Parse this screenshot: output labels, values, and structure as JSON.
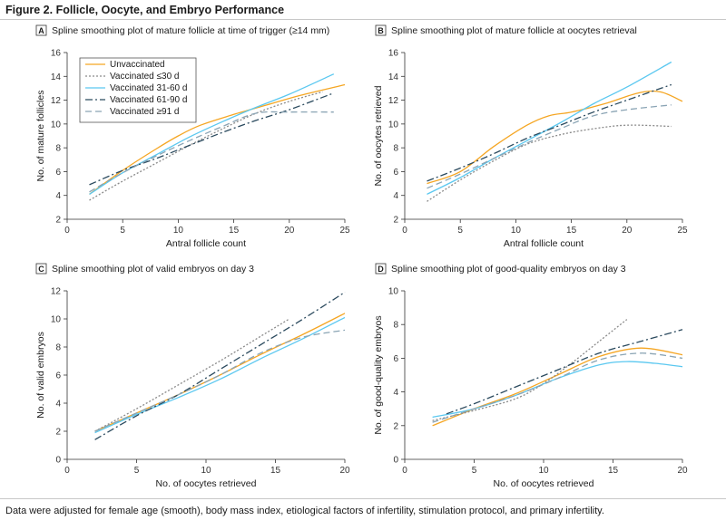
{
  "figure": {
    "title": "Figure 2. Follicle, Oocyte, and Embryo Performance",
    "footnote": "Data were adjusted for female age (smooth), body mass index, etiological factors of infertility, stimulation protocol, and primary infertility."
  },
  "series_styles": [
    {
      "name": "Unvaccinated",
      "color": "#f5a623",
      "dash": "solid"
    },
    {
      "name": "Vaccinated ≤30 d",
      "color": "#8a8a8a",
      "dash": "dotted"
    },
    {
      "name": "Vaccinated 31-60 d",
      "color": "#5bc8f0",
      "dash": "solid"
    },
    {
      "name": "Vaccinated 61-90 d",
      "color": "#2b4a5e",
      "dash": "dashdot"
    },
    {
      "name": "Vaccinated ≥91 d",
      "color": "#8aa4b4",
      "dash": "dashed"
    }
  ],
  "chart_data": [
    {
      "panel": "A",
      "type": "line",
      "title": "Spline smoothing plot of mature follicle at time of trigger (≥14 mm)",
      "xlabel": "Antral follicle count",
      "ylabel": "No. of mature follicles",
      "xlim": [
        0,
        25
      ],
      "ylim": [
        2,
        16
      ],
      "xticks": [
        0,
        5,
        10,
        15,
        20,
        25
      ],
      "yticks": [
        2,
        4,
        6,
        8,
        10,
        12,
        14,
        16
      ],
      "legend": "top-left",
      "series": [
        {
          "name": "Unvaccinated",
          "x": [
            2,
            5,
            8,
            10,
            12,
            15,
            18,
            21,
            25
          ],
          "y": [
            4.1,
            6.1,
            7.9,
            9.0,
            9.9,
            10.8,
            11.6,
            12.4,
            13.3
          ]
        },
        {
          "name": "Vaccinated ≤30 d",
          "x": [
            2,
            5,
            8,
            11,
            14,
            17,
            20,
            23
          ],
          "y": [
            3.6,
            5.2,
            6.7,
            8.2,
            9.6,
            10.9,
            11.9,
            12.7
          ]
        },
        {
          "name": "Vaccinated 31-60 d",
          "x": [
            2,
            5,
            8,
            11,
            14,
            17,
            20,
            24
          ],
          "y": [
            4.1,
            5.9,
            7.4,
            8.9,
            10.2,
            11.4,
            12.5,
            14.2
          ]
        },
        {
          "name": "Vaccinated 61-90 d",
          "x": [
            2,
            5,
            8,
            11,
            14,
            17,
            20,
            24
          ],
          "y": [
            4.9,
            6.1,
            7.1,
            8.2,
            9.3,
            10.3,
            11.2,
            12.6
          ]
        },
        {
          "name": "Vaccinated ≥91 d",
          "x": [
            2,
            5,
            8,
            11,
            14,
            17,
            20,
            24
          ],
          "y": [
            4.3,
            5.9,
            7.3,
            8.6,
            9.8,
            10.9,
            11.0,
            11.0
          ]
        }
      ]
    },
    {
      "panel": "B",
      "type": "line",
      "title": "Spline smoothing plot of mature follicle at oocytes retrieval",
      "xlabel": "Antral follicle count",
      "ylabel": "No. of oocytes retrieved",
      "xlim": [
        0,
        25
      ],
      "ylim": [
        2,
        16
      ],
      "xticks": [
        0,
        5,
        10,
        15,
        20,
        25
      ],
      "yticks": [
        2,
        4,
        6,
        8,
        10,
        12,
        14,
        16
      ],
      "legend": "none",
      "series": [
        {
          "name": "Unvaccinated",
          "x": [
            2,
            5,
            8,
            11,
            13,
            15,
            18,
            21,
            23,
            25
          ],
          "y": [
            5.0,
            6.0,
            8.1,
            9.9,
            10.7,
            11.0,
            11.7,
            12.6,
            12.7,
            11.9
          ]
        },
        {
          "name": "Vaccinated ≤30 d",
          "x": [
            2,
            5,
            8,
            11,
            14,
            17,
            20,
            24
          ],
          "y": [
            3.5,
            5.3,
            6.9,
            8.3,
            9.1,
            9.6,
            9.9,
            9.8
          ]
        },
        {
          "name": "Vaccinated 31-60 d",
          "x": [
            2,
            5,
            8,
            11,
            14,
            17,
            20,
            24
          ],
          "y": [
            4.1,
            5.5,
            7.1,
            8.6,
            10.1,
            11.7,
            13.1,
            15.2
          ]
        },
        {
          "name": "Vaccinated 61-90 d",
          "x": [
            2,
            5,
            8,
            11,
            14,
            17,
            20,
            24
          ],
          "y": [
            5.2,
            6.3,
            7.5,
            8.8,
            9.9,
            11.0,
            12.0,
            13.3
          ]
        },
        {
          "name": "Vaccinated ≥91 d",
          "x": [
            2,
            5,
            8,
            11,
            14,
            17,
            20,
            24
          ],
          "y": [
            4.6,
            5.8,
            7.1,
            8.4,
            9.6,
            10.7,
            11.2,
            11.6
          ]
        }
      ]
    },
    {
      "panel": "C",
      "type": "line",
      "title": "Spline smoothing plot of valid embryos on day 3",
      "xlabel": "No. of oocytes retrieved",
      "ylabel": "No. of valid embryos",
      "xlim": [
        0,
        20
      ],
      "ylim": [
        0,
        12
      ],
      "xticks": [
        0,
        5,
        10,
        15,
        20
      ],
      "yticks": [
        0,
        2,
        4,
        6,
        8,
        10,
        12
      ],
      "legend": "none",
      "series": [
        {
          "name": "Unvaccinated",
          "x": [
            2,
            5,
            8,
            11,
            14,
            17,
            20
          ],
          "y": [
            2.0,
            3.3,
            4.6,
            6.0,
            7.5,
            8.9,
            10.4
          ]
        },
        {
          "name": "Vaccinated ≤30 d",
          "x": [
            2,
            5,
            8,
            11,
            14,
            16
          ],
          "y": [
            2.0,
            3.6,
            5.3,
            7.0,
            8.8,
            10.0
          ]
        },
        {
          "name": "Vaccinated 31-60 d",
          "x": [
            2,
            5,
            8,
            11,
            14,
            17,
            20
          ],
          "y": [
            1.9,
            3.2,
            4.4,
            5.7,
            7.2,
            8.6,
            10.1
          ]
        },
        {
          "name": "Vaccinated 61-90 d",
          "x": [
            2,
            5,
            8,
            11,
            14,
            17,
            20
          ],
          "y": [
            1.4,
            3.1,
            4.6,
            6.4,
            8.2,
            10.0,
            11.9
          ]
        },
        {
          "name": "Vaccinated ≥91 d",
          "x": [
            2,
            5,
            8,
            11,
            14,
            17,
            20
          ],
          "y": [
            2.0,
            3.3,
            4.6,
            6.0,
            7.6,
            8.7,
            9.2
          ]
        }
      ]
    },
    {
      "panel": "D",
      "type": "line",
      "title": "Spline smoothing plot of good-quality embryos on day 3",
      "xlabel": "No. of oocytes retrieved",
      "ylabel": "No. of good-quality embryos",
      "xlim": [
        0,
        20
      ],
      "ylim": [
        0,
        10
      ],
      "xticks": [
        0,
        5,
        10,
        15,
        20
      ],
      "yticks": [
        0,
        2,
        4,
        6,
        8,
        10
      ],
      "legend": "none",
      "series": [
        {
          "name": "Unvaccinated",
          "x": [
            2,
            5,
            8,
            11,
            14,
            17,
            20
          ],
          "y": [
            2.0,
            3.0,
            3.9,
            5.0,
            6.1,
            6.6,
            6.2
          ]
        },
        {
          "name": "Vaccinated ≤30 d",
          "x": [
            2,
            5,
            8,
            10,
            12,
            14,
            16
          ],
          "y": [
            2.3,
            2.9,
            3.6,
            4.5,
            5.7,
            7.0,
            8.3
          ]
        },
        {
          "name": "Vaccinated 31-60 d",
          "x": [
            2,
            5,
            8,
            11,
            14,
            16,
            18,
            20
          ],
          "y": [
            2.5,
            3.0,
            3.8,
            4.8,
            5.6,
            5.8,
            5.7,
            5.5
          ]
        },
        {
          "name": "Vaccinated 61-90 d",
          "x": [
            3,
            5,
            8,
            11,
            14,
            17,
            20
          ],
          "y": [
            2.7,
            3.3,
            4.3,
            5.3,
            6.3,
            7.0,
            7.7
          ]
        },
        {
          "name": "Vaccinated ≥91 d",
          "x": [
            2,
            5,
            8,
            11,
            14,
            17,
            20
          ],
          "y": [
            2.2,
            3.0,
            3.8,
            4.8,
            5.9,
            6.3,
            6.0
          ]
        }
      ]
    }
  ]
}
